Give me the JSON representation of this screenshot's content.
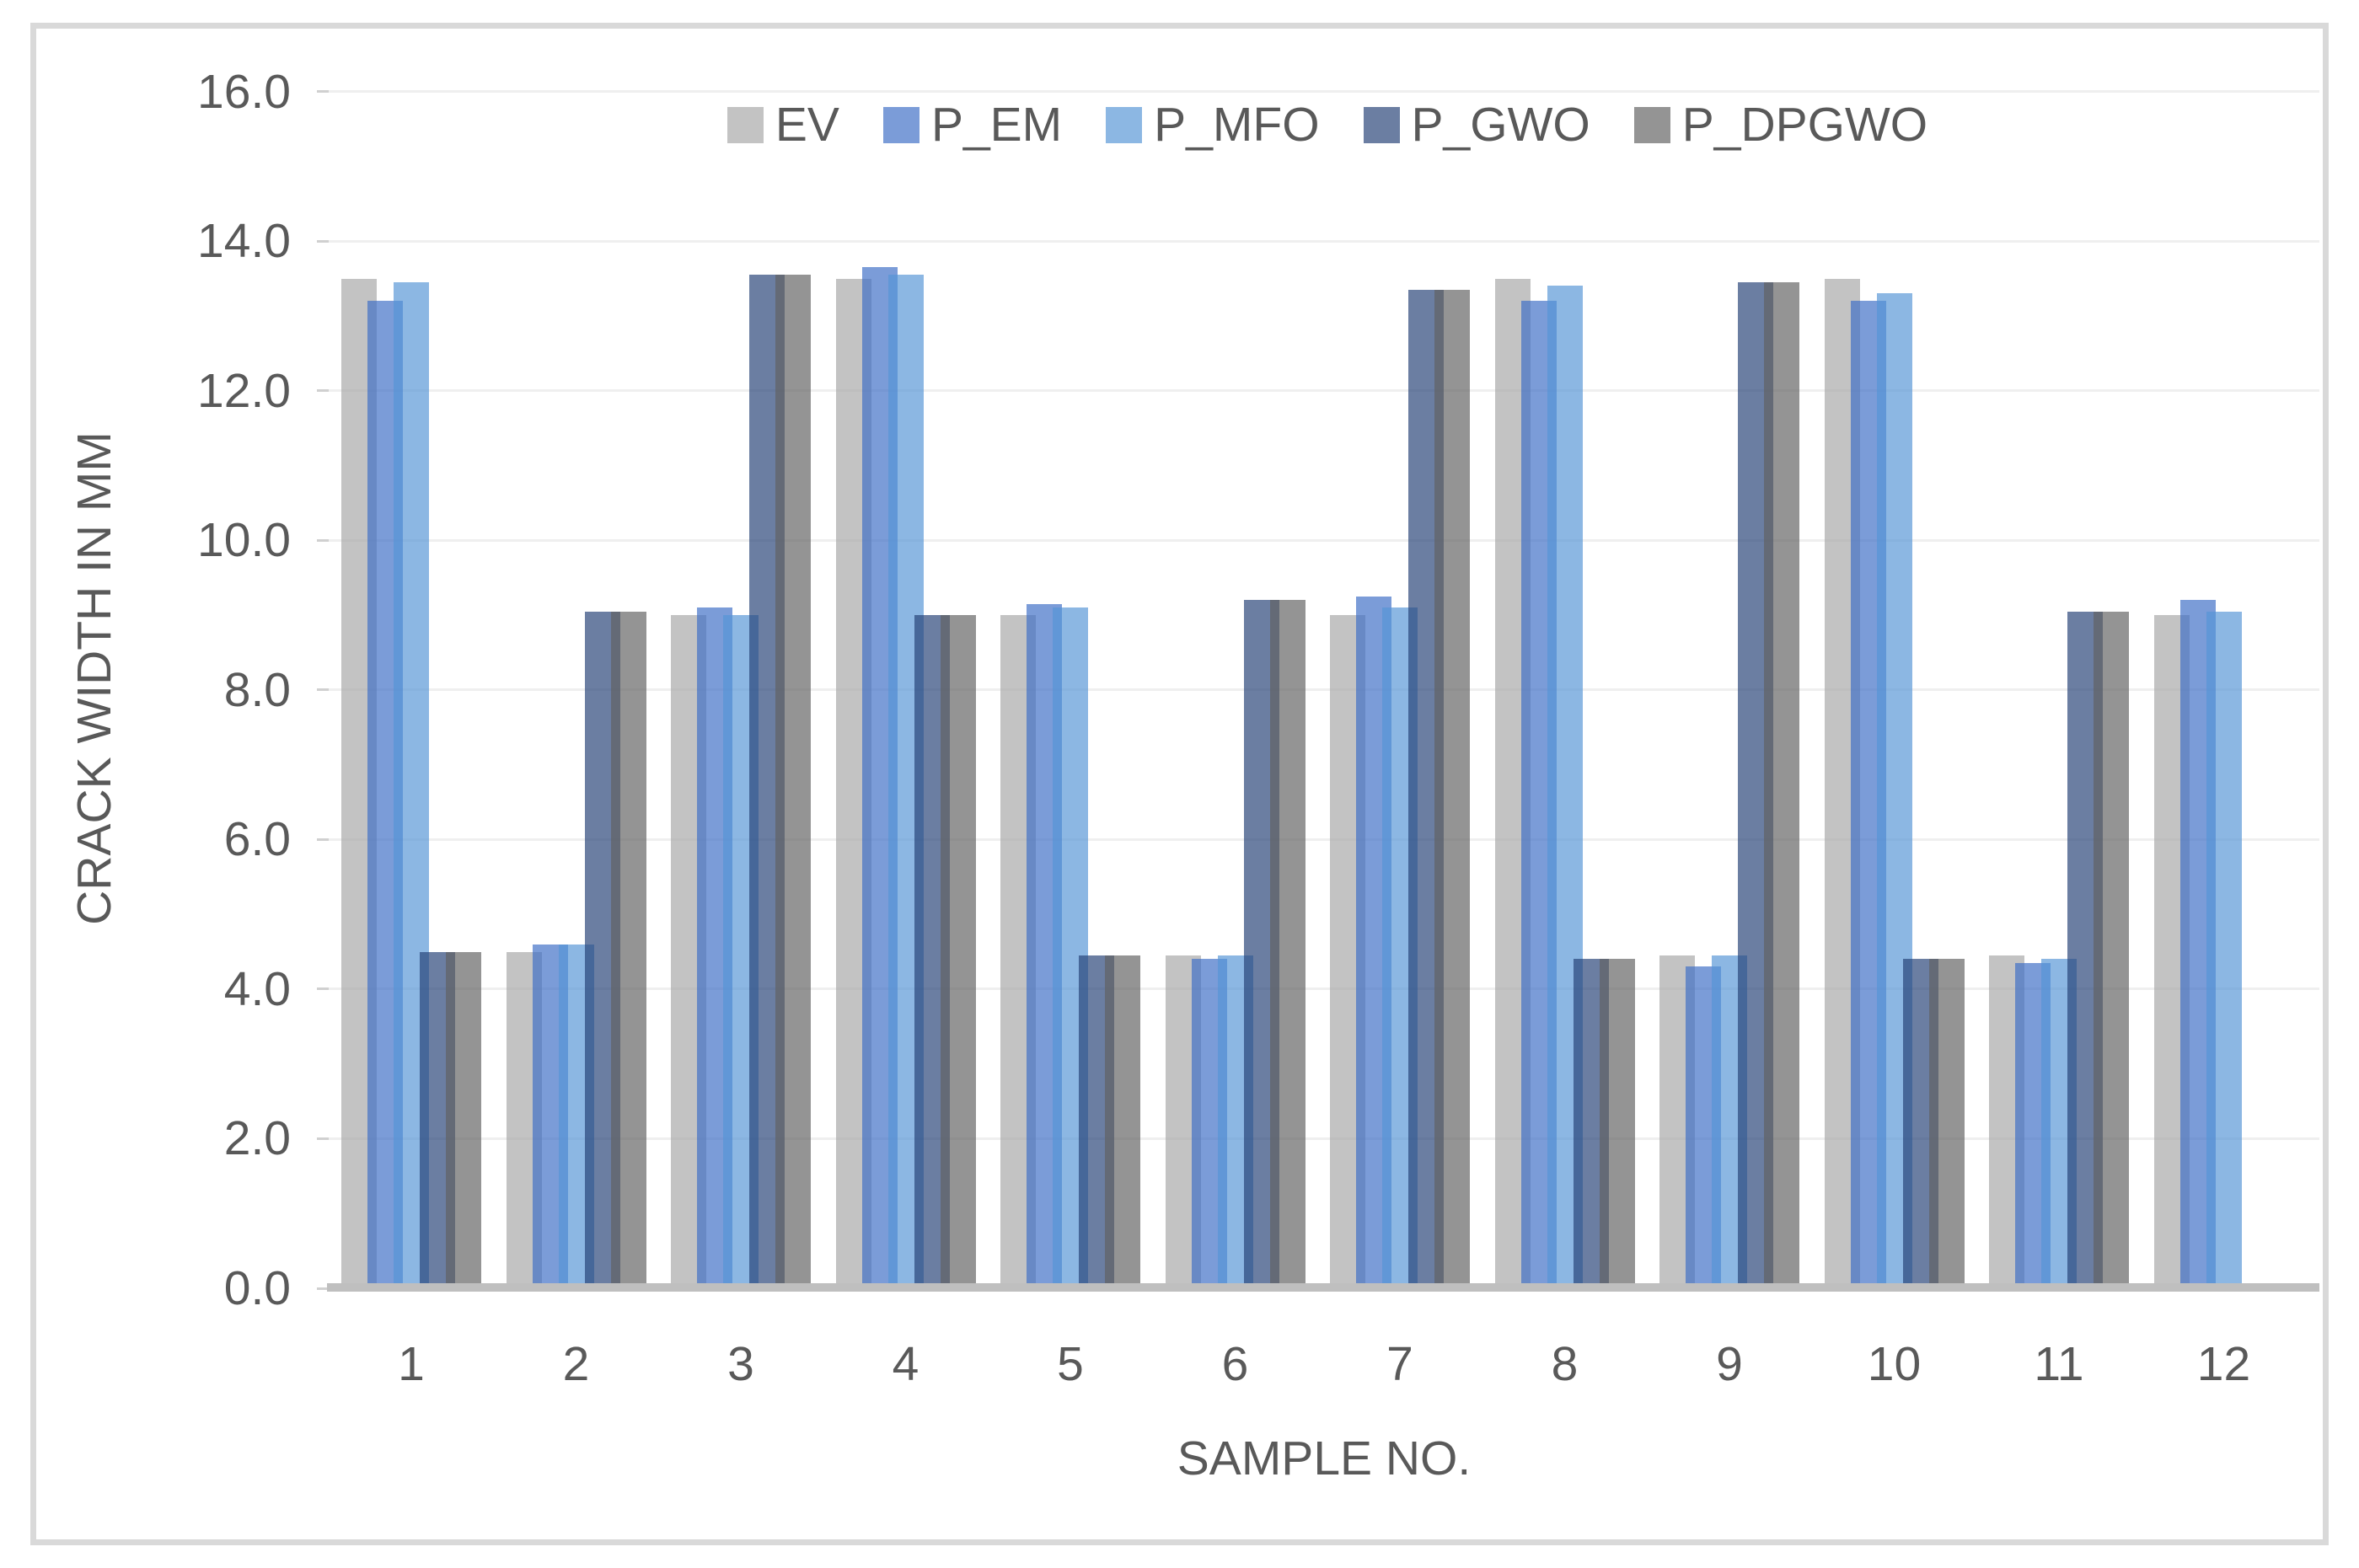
{
  "figure": {
    "background": "#ffffff",
    "border_color": "#d9d9d9",
    "axis_text_color": "#595959",
    "gridline_color": "#efefef",
    "tick_color": "#d0d0d0",
    "axis_line_color": "#bfbfbf"
  },
  "chart_data": {
    "type": "bar",
    "title": "",
    "xlabel": "SAMPLE NO.",
    "ylabel": "CRACK WIDTH IN MM",
    "categories": [
      "1",
      "2",
      "3",
      "4",
      "5",
      "6",
      "7",
      "8",
      "9",
      "10",
      "11",
      "12"
    ],
    "ylim": [
      0,
      16
    ],
    "ytick_step": 2,
    "ytick_labels": [
      "0.0",
      "2.0",
      "4.0",
      "6.0",
      "8.0",
      "10.0",
      "12.0",
      "14.0",
      "16.0"
    ],
    "grid": true,
    "legend_position": "top",
    "bar_style": "overlapping-semi-transparent",
    "series": [
      {
        "name": "EV",
        "color": "#c3c3c3",
        "overlay_color": "#a7a7a7",
        "values": [
          13.5,
          4.5,
          9.0,
          13.5,
          9.0,
          4.45,
          9.0,
          13.5,
          4.45,
          13.5,
          4.45,
          9.0
        ]
      },
      {
        "name": "P_EM",
        "color": "#7b9cd8",
        "overlay_color": "#3d6dc6",
        "values": [
          13.2,
          4.6,
          9.1,
          13.65,
          9.15,
          4.4,
          9.25,
          13.2,
          4.3,
          13.2,
          4.35,
          9.2
        ]
      },
      {
        "name": "P_MFO",
        "color": "#8cb7e3",
        "overlay_color": "#5695d6",
        "values": [
          13.45,
          4.6,
          9.0,
          13.55,
          9.1,
          4.45,
          9.1,
          13.4,
          4.45,
          13.3,
          4.4,
          9.05
        ]
      },
      {
        "name": "P_GWO",
        "color": "#6b7ea2",
        "overlay_color": "#254176",
        "values": [
          4.5,
          9.05,
          13.55,
          9.0,
          4.45,
          9.2,
          13.35,
          4.4,
          13.45,
          4.4,
          9.05,
          0
        ]
      },
      {
        "name": "P_DPGWO",
        "color": "#949494",
        "overlay_color": "#626262",
        "values": [
          4.5,
          9.05,
          13.55,
          9.0,
          4.45,
          9.2,
          13.35,
          4.4,
          13.45,
          4.4,
          9.05,
          0
        ]
      }
    ]
  }
}
